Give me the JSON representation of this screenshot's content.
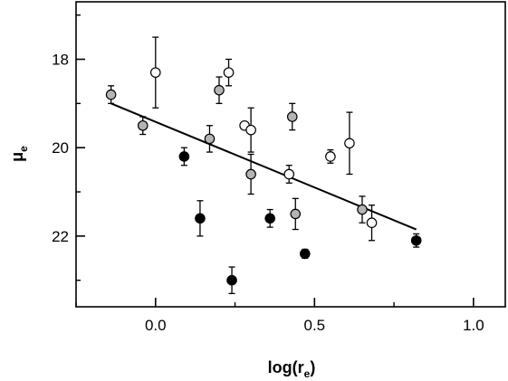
{
  "chart_data": {
    "type": "scatter",
    "title": "",
    "xlabel": "log(r_e)",
    "ylabel": "μ_e",
    "xlabel_parts": {
      "main": "log(r",
      "sub": "e",
      "close": ")"
    },
    "ylabel_parts": {
      "main": "μ",
      "sub": "e"
    },
    "xlim": [
      -0.25,
      1.1
    ],
    "ylim": [
      23.6,
      16.7
    ],
    "y_inverted": true,
    "xticks": [
      0.0,
      0.5,
      1.0
    ],
    "xtick_labels": [
      "0.0",
      "0.5",
      "1.0"
    ],
    "xticks_minor": [
      -0.25,
      0.25,
      0.75
    ],
    "yticks": [
      18,
      20,
      22
    ],
    "ytick_labels": [
      "18",
      "20",
      "22"
    ],
    "yticks_minor": [
      17,
      19,
      21,
      23
    ],
    "grid": false,
    "legend": "none",
    "series": [
      {
        "marker": "open-circle",
        "color": "#ffffff",
        "points": [
          {
            "x": 0.0,
            "y": 18.3,
            "err": 0.8
          },
          {
            "x": 0.23,
            "y": 18.3,
            "err": 0.3
          },
          {
            "x": 0.28,
            "y": 19.5,
            "err": 0.0
          },
          {
            "x": 0.3,
            "y": 19.6,
            "err": 0.5
          },
          {
            "x": 0.42,
            "y": 20.6,
            "err": 0.2
          },
          {
            "x": 0.55,
            "y": 20.2,
            "err": 0.15
          },
          {
            "x": 0.61,
            "y": 19.9,
            "err": 0.7
          },
          {
            "x": 0.68,
            "y": 21.7,
            "err": 0.4
          }
        ]
      },
      {
        "marker": "gray-circle",
        "color": "#b4b4b4",
        "points": [
          {
            "x": -0.14,
            "y": 18.8,
            "err": 0.2
          },
          {
            "x": -0.04,
            "y": 19.5,
            "err": 0.2
          },
          {
            "x": 0.17,
            "y": 19.8,
            "err": 0.3
          },
          {
            "x": 0.2,
            "y": 18.7,
            "err": 0.3
          },
          {
            "x": 0.3,
            "y": 20.6,
            "err": 0.45
          },
          {
            "x": 0.43,
            "y": 19.3,
            "err": 0.3
          },
          {
            "x": 0.44,
            "y": 21.5,
            "err": 0.35
          },
          {
            "x": 0.65,
            "y": 21.4,
            "err": 0.3
          }
        ]
      },
      {
        "marker": "filled-circle",
        "color": "#000000",
        "points": [
          {
            "x": 0.09,
            "y": 20.2,
            "err": 0.2
          },
          {
            "x": 0.14,
            "y": 21.6,
            "err": 0.4
          },
          {
            "x": 0.24,
            "y": 23.0,
            "err": 0.3
          },
          {
            "x": 0.36,
            "y": 21.6,
            "err": 0.2
          },
          {
            "x": 0.47,
            "y": 22.4,
            "err": 0.1
          },
          {
            "x": 0.82,
            "y": 22.1,
            "err": 0.15
          }
        ]
      }
    ],
    "fit_line": {
      "x": [
        -0.14,
        0.82
      ],
      "y": [
        19.0,
        21.85
      ]
    }
  }
}
